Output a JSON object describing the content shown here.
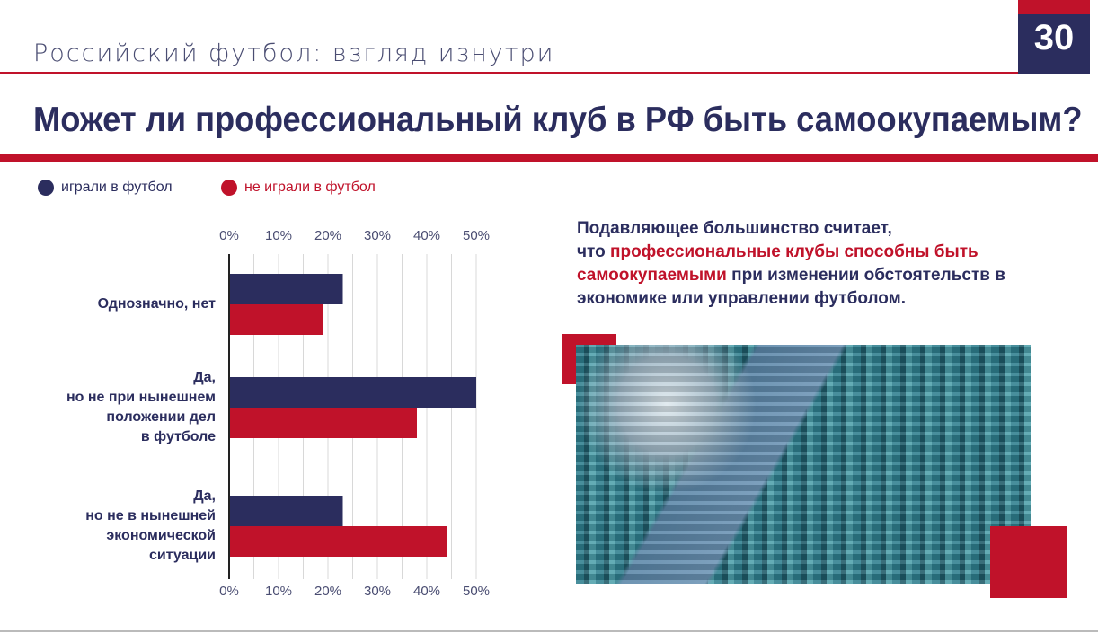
{
  "header": {
    "subtitle": "Российский футбол: взгляд изнутри",
    "page_number": "30",
    "title": "Может ли профессиональный клуб в РФ быть самоокупаемым?"
  },
  "legend": [
    {
      "label": "играли в футбол",
      "color": "#2b2d5e"
    },
    {
      "label": "не играли в футбол",
      "color": "#c0122a"
    }
  ],
  "summary": {
    "part1": "Подавляющее большинство считает,",
    "part2": "что ",
    "highlight": "профессиональные клубы способны быть самоокупаемыми",
    "part3": " при изменении обстоятельств в экономике или управлении футболом."
  },
  "categories_display": [
    [
      "Однозначно, нет"
    ],
    [
      "Да,",
      "но не при нынешнем",
      "положении дел",
      "в футболе"
    ],
    [
      "Да,",
      "но не в нынешней",
      "экономической",
      "ситуации"
    ]
  ],
  "chart_data": {
    "type": "bar",
    "orientation": "horizontal",
    "categories": [
      "Однозначно, нет",
      "Да, но не при нынешнем положении дел в футболе",
      "Да, но не в нынешней экономической ситуации"
    ],
    "series": [
      {
        "name": "играли в футбол",
        "color": "#2b2d5e",
        "values": [
          23,
          50,
          23
        ]
      },
      {
        "name": "не играли в футбол",
        "color": "#c0122a",
        "values": [
          19,
          38,
          44
        ]
      }
    ],
    "xlim": [
      0,
      50
    ],
    "ticks": [
      "0%",
      "10%",
      "20%",
      "30%",
      "40%",
      "50%"
    ],
    "grid": true,
    "legend": "top-left",
    "title": "",
    "xlabel": "",
    "ylabel": ""
  }
}
